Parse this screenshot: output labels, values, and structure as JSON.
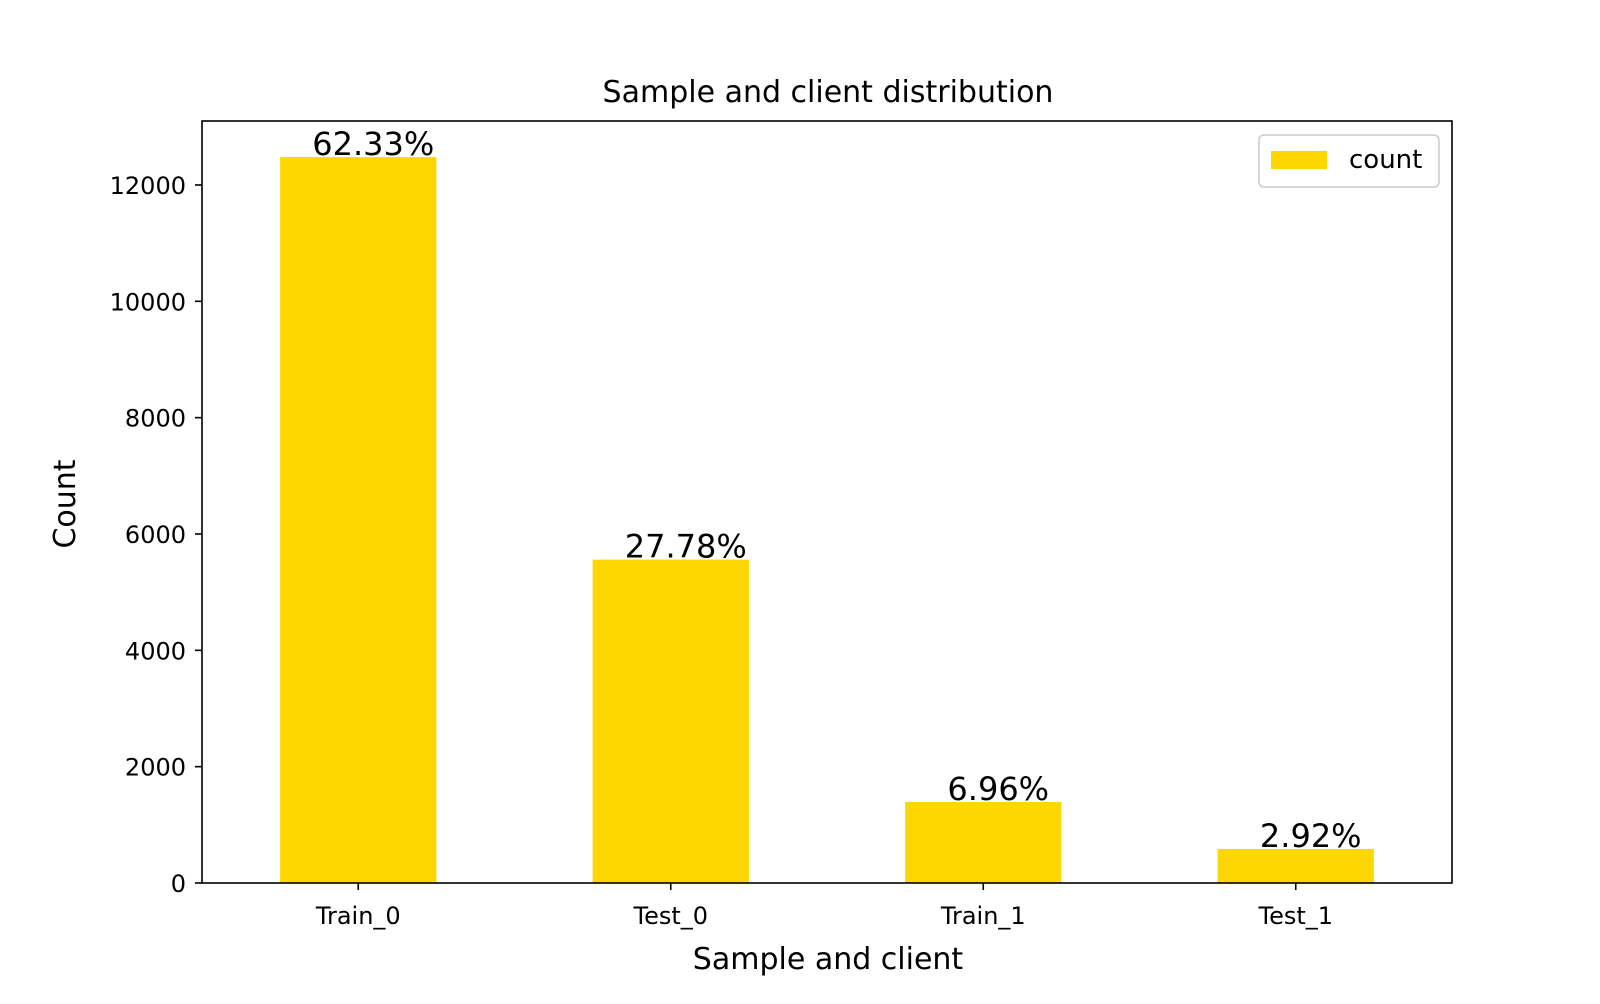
{
  "chart_data": {
    "type": "bar",
    "title": "Sample and client distribution",
    "xlabel": "Sample and client",
    "ylabel": "Count",
    "categories": [
      "Train_0",
      "Test_0",
      "Train_1",
      "Test_1"
    ],
    "series": [
      {
        "name": "count",
        "values": [
          12480,
          5560,
          1393,
          585
        ],
        "labels": [
          "62.33%",
          "27.78%",
          "6.96%",
          "2.92%"
        ],
        "color": "#FFD700"
      }
    ],
    "ylim": [
      0,
      13100
    ],
    "yticks": [
      0,
      2000,
      4000,
      6000,
      8000,
      10000,
      12000
    ],
    "ytick_labels": [
      "0",
      "2000",
      "4000",
      "6000",
      "8000",
      "10000",
      "12000"
    ],
    "grid": false,
    "legend": "top-right"
  }
}
